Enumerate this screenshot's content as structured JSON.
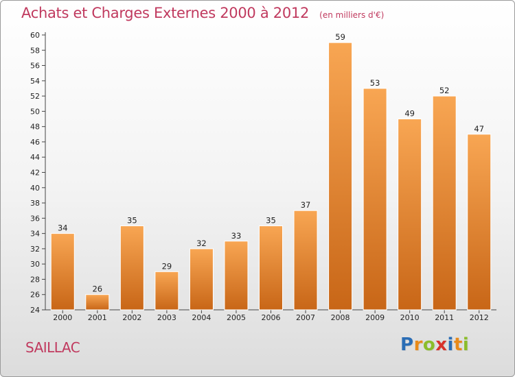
{
  "title": "Achats et Charges Externes 2000 à 2012",
  "subtitle": "(en milliers d'€)",
  "commune": "SAILLAC",
  "logo": {
    "letters": [
      "P",
      "r",
      "o",
      "x",
      "i",
      "t",
      "i"
    ],
    "colors": [
      "#2a6db5",
      "#e88a1a",
      "#8bbd2a",
      "#d8322b",
      "#2a6db5",
      "#e88a1a",
      "#8bbd2a"
    ]
  },
  "chart_data": {
    "type": "bar",
    "title": "Achats et Charges Externes 2000 à 2012",
    "subtitle": "(en milliers d'€)",
    "categories": [
      "2000",
      "2001",
      "2002",
      "2003",
      "2004",
      "2005",
      "2006",
      "2007",
      "2008",
      "2009",
      "2010",
      "2011",
      "2012"
    ],
    "values": [
      34,
      26,
      35,
      29,
      32,
      33,
      35,
      37,
      59,
      53,
      49,
      52,
      47
    ],
    "data_labels": [
      "34",
      "26",
      "35",
      "29",
      "32",
      "33",
      "35",
      "37",
      "59",
      "53",
      "49",
      "52",
      "47"
    ],
    "ylim": [
      24,
      60
    ],
    "yticks": [
      "24",
      "26",
      "28",
      "30",
      "32",
      "34",
      "36",
      "38",
      "40",
      "42",
      "44",
      "46",
      "48",
      "50",
      "52",
      "54",
      "56",
      "58",
      "60"
    ],
    "grid": false,
    "bar_color_top": "#f8a653",
    "bar_color_bottom": "#c86617"
  }
}
